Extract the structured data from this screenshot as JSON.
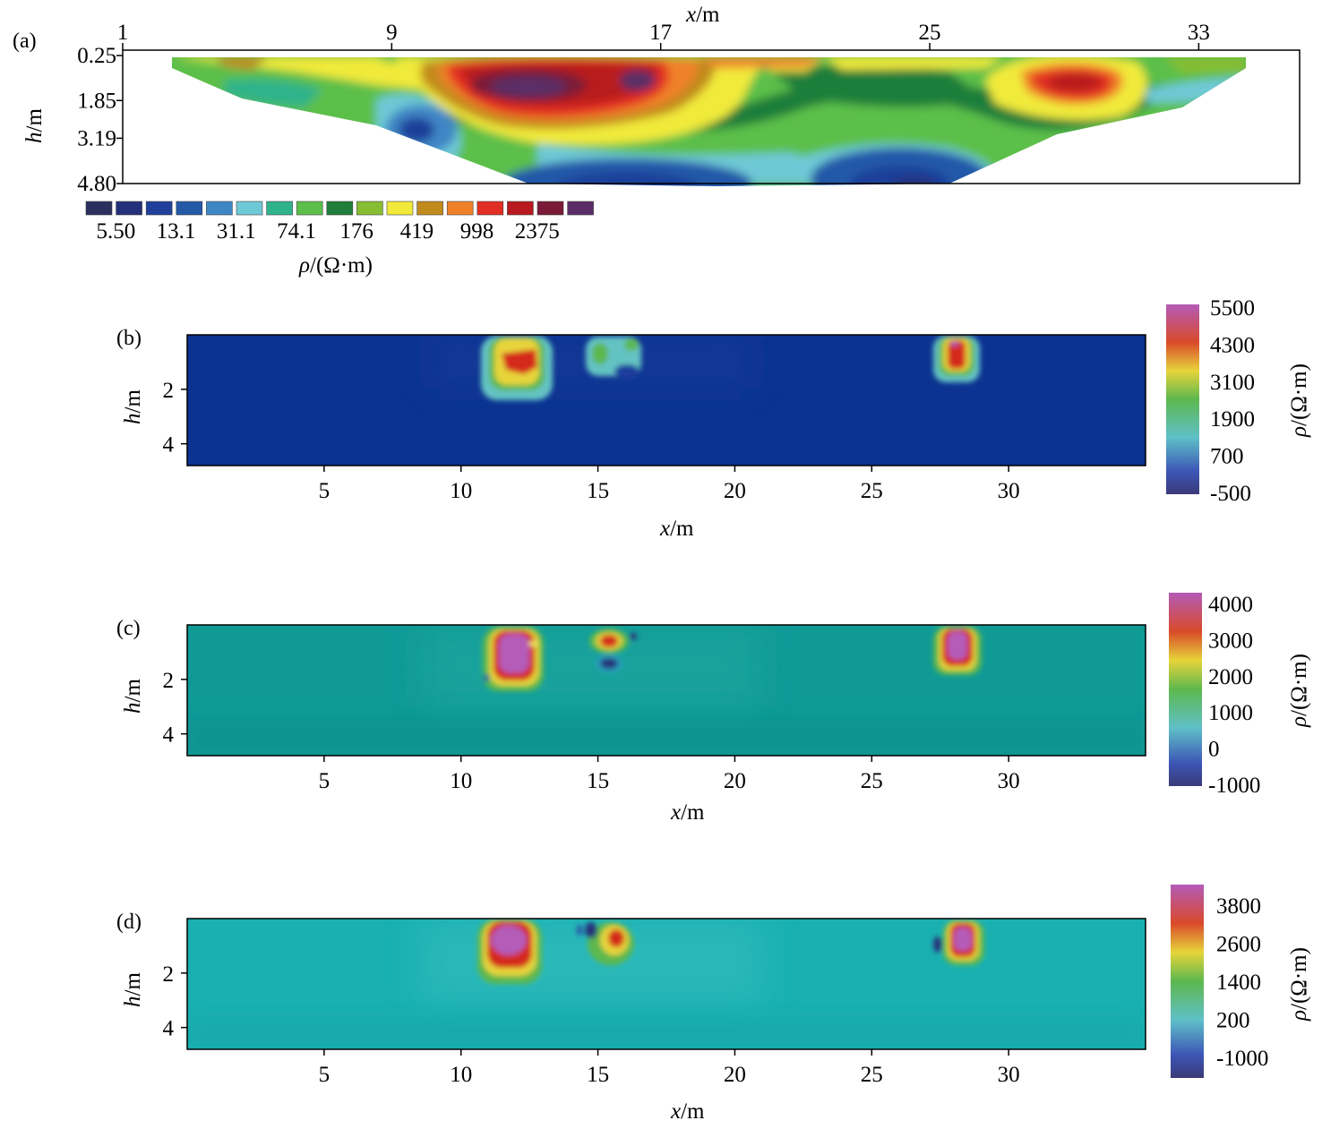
{
  "chart_data": [
    {
      "panel": "(a)",
      "type": "heatmap",
      "xlabel_var": "x",
      "xlabel_unit": "/m",
      "ylabel_var": "h",
      "ylabel_unit": "/m",
      "x_ticks": [
        "1",
        "9",
        "17",
        "25",
        "33"
      ],
      "x_range": [
        1,
        36
      ],
      "y_ticks": [
        "0.25",
        "1.85",
        "3.19",
        "4.80"
      ],
      "y_range": [
        0.25,
        4.8
      ],
      "x_axis_position": "top",
      "colorbar_position": "bottom-left",
      "colorbar_ticks": [
        "5.50",
        "13.1",
        "31.1",
        "74.1",
        "176",
        "419",
        "998",
        "2375"
      ],
      "colorbar_label_var": "ρ",
      "colorbar_label_unit": "/(Ω·m)",
      "palette": [
        "#2a2f5e",
        "#25307a",
        "#1f3f9a",
        "#2459a8",
        "#3f86c5",
        "#6ec9d6",
        "#2fb38a",
        "#5bbf4a",
        "#1f7e3a",
        "#86bd32",
        "#f1ea3a",
        "#c18a1d",
        "#f0812a",
        "#e22f24",
        "#b81a1f",
        "#7a1a38",
        "#5a2d66"
      ],
      "grid": false,
      "section_bottom_x_range": [
        12,
        24
      ],
      "anomalies": [
        {
          "x": 14.2,
          "h": 1.2,
          "rho": 4500,
          "label": "high"
        },
        {
          "x": 16.5,
          "h": 1.1,
          "rho": 3500,
          "label": "high"
        },
        {
          "x": 29.2,
          "h": 1.0,
          "rho": 3500,
          "label": "high"
        },
        {
          "x": 8.5,
          "h": 2.7,
          "rho": 12,
          "label": "low"
        },
        {
          "x": 17.0,
          "h": 4.6,
          "rho": 8,
          "label": "low"
        },
        {
          "x": 24.7,
          "h": 4.3,
          "rho": 8,
          "label": "low"
        }
      ]
    },
    {
      "panel": "(b)",
      "type": "heatmap",
      "xlabel_var": "x",
      "xlabel_unit": "/m",
      "ylabel_var": "h",
      "ylabel_unit": "/m",
      "x_ticks": [
        5,
        10,
        15,
        20,
        25,
        30
      ],
      "x_range": [
        0,
        35
      ],
      "y_ticks": [
        2,
        4
      ],
      "y_range": [
        0,
        4.8
      ],
      "colorbar_ticks": [
        "5500",
        "4300",
        "3100",
        "1900",
        "700",
        "-500"
      ],
      "colorbar_range": [
        -500,
        5500
      ],
      "colorbar_label_var": "ρ",
      "colorbar_label_unit": "/(Ω·m)",
      "background_value": -500,
      "grid": false,
      "anomalies": [
        {
          "x": 12.1,
          "h": 1.0,
          "rho": 4300
        },
        {
          "x": 15.5,
          "h": 0.8,
          "rho": 1900
        },
        {
          "x": 28.1,
          "h": 0.7,
          "rho": 4300
        }
      ]
    },
    {
      "panel": "(c)",
      "type": "heatmap",
      "xlabel_var": "x",
      "xlabel_unit": "/m",
      "ylabel_var": "h",
      "ylabel_unit": "/m",
      "x_ticks": [
        5,
        10,
        15,
        20,
        25,
        30
      ],
      "x_range": [
        0,
        35
      ],
      "y_ticks": [
        2,
        4
      ],
      "y_range": [
        0,
        4.8
      ],
      "colorbar_ticks": [
        "4000",
        "3000",
        "2000",
        "1000",
        "0",
        "-1000"
      ],
      "colorbar_range": [
        -1000,
        4000
      ],
      "colorbar_label_var": "ρ",
      "colorbar_label_unit": "/(Ω·m)",
      "background_value": 100,
      "grid": false,
      "anomalies": [
        {
          "x": 12.0,
          "h": 1.2,
          "rho": 4000
        },
        {
          "x": 15.5,
          "h": 0.5,
          "rho": 3000
        },
        {
          "x": 15.4,
          "h": 1.4,
          "rho": -1000
        },
        {
          "x": 28.1,
          "h": 0.8,
          "rho": 4000
        }
      ]
    },
    {
      "panel": "(d)",
      "type": "heatmap",
      "xlabel_var": "x",
      "xlabel_unit": "/m",
      "ylabel_var": "h",
      "ylabel_unit": "/m",
      "x_ticks": [
        5,
        10,
        15,
        20,
        25,
        30
      ],
      "x_range": [
        0,
        35
      ],
      "y_ticks": [
        2,
        4
      ],
      "y_range": [
        0,
        4.8
      ],
      "colorbar_ticks": [
        "3800",
        "2600",
        "1400",
        "200",
        "-1000"
      ],
      "colorbar_range": [
        -1000,
        4600
      ],
      "colorbar_label_var": "ρ",
      "colorbar_label_unit": "/(Ω·m)",
      "background_value": 0,
      "grid": false,
      "anomalies": [
        {
          "x": 11.8,
          "h": 0.9,
          "rho": 4200
        },
        {
          "x": 15.8,
          "h": 0.8,
          "rho": 3000
        },
        {
          "x": 14.7,
          "h": 0.4,
          "rho": -1000
        },
        {
          "x": 28.2,
          "h": 0.8,
          "rho": 4000
        },
        {
          "x": 27.4,
          "h": 0.9,
          "rho": -1000
        }
      ]
    }
  ]
}
